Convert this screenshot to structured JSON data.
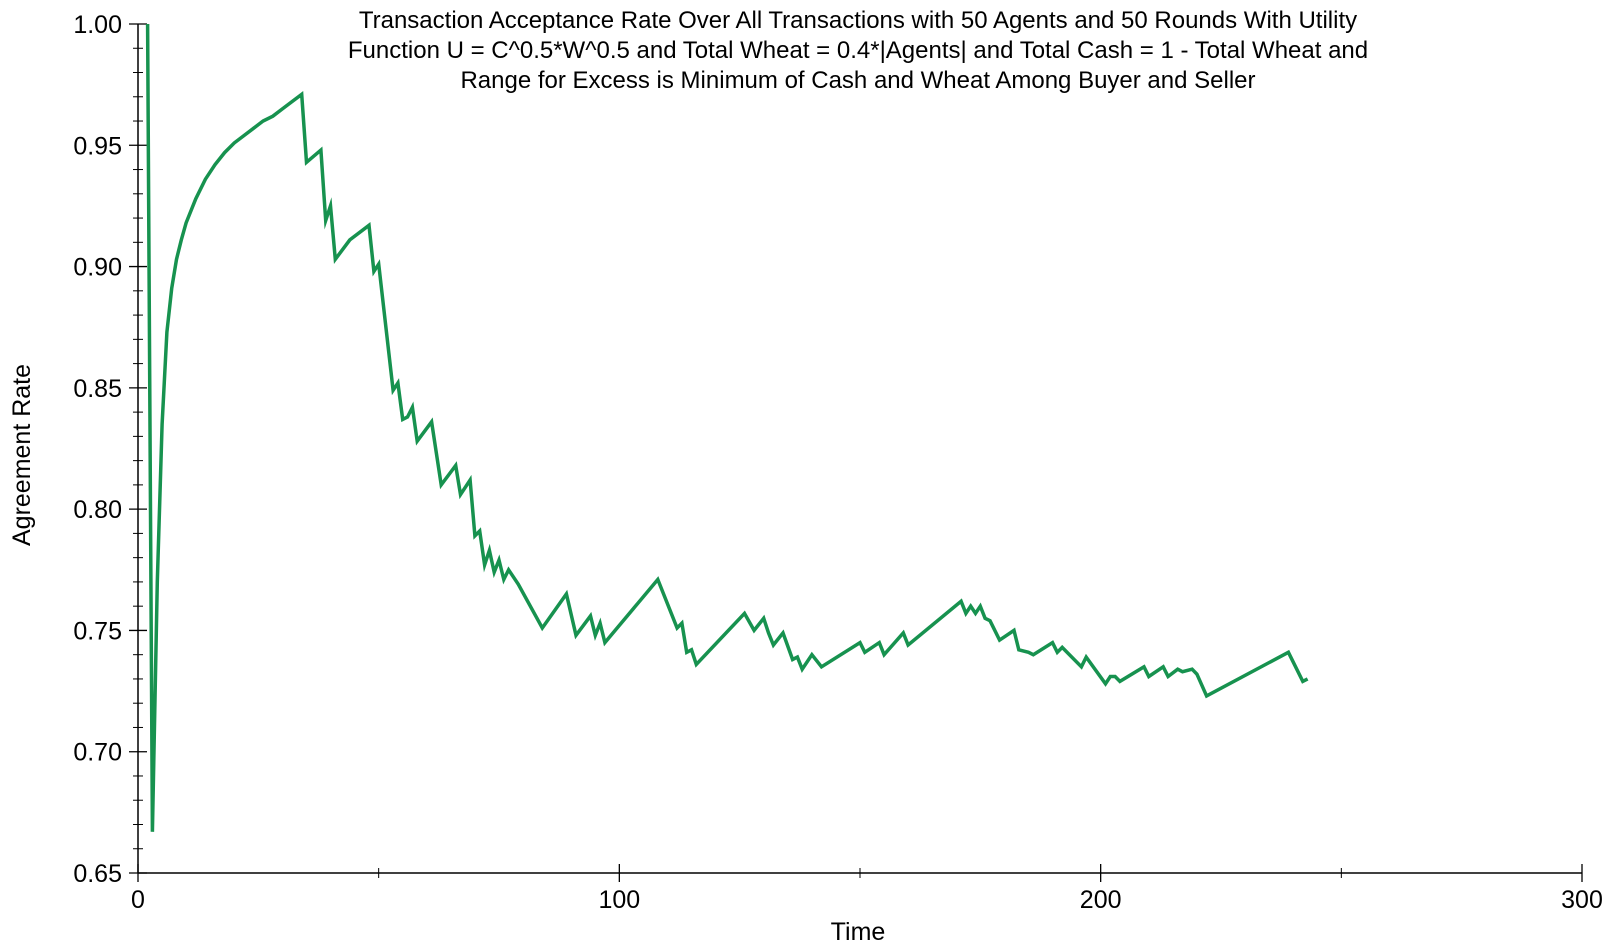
{
  "chart_data": {
    "type": "line",
    "title_lines": [
      "Transaction Acceptance Rate Over All Transactions with 50 Agents and 50 Rounds With Utility",
      "Function U = C^0.5*W^0.5 and Total Wheat = 0.4*|Agents| and Total Cash = 1 - Total Wheat and",
      "Range for Excess is Minimum of Cash and Wheat Among Buyer and Seller"
    ],
    "xlabel": "Time",
    "ylabel": "Agreement Rate",
    "xlim": [
      0,
      300
    ],
    "ylim": [
      0.65,
      1.0
    ],
    "x_ticks": [
      0,
      100,
      200,
      300
    ],
    "x_tick_labels": [
      "0",
      "100",
      "200",
      "300"
    ],
    "x_minor_ticks": [
      50,
      150,
      250
    ],
    "y_ticks": [
      0.65,
      0.7,
      0.75,
      0.8,
      0.85,
      0.9,
      0.95,
      1.0
    ],
    "y_tick_labels": [
      "0.65",
      "0.70",
      "0.75",
      "0.80",
      "0.85",
      "0.90",
      "0.95",
      "1.00"
    ],
    "y_minor_step": 0.01,
    "grid": false,
    "legend": "none",
    "series": [
      {
        "color": "#17924f",
        "x": [
          2,
          3,
          4,
          5,
          6,
          7,
          8,
          9,
          10,
          12,
          14,
          16,
          18,
          20,
          22,
          24,
          26,
          28,
          30,
          32,
          34,
          35,
          38,
          39,
          40,
          41,
          44,
          48,
          49,
          50,
          53,
          54,
          55,
          56,
          57,
          58,
          61,
          62,
          63,
          66,
          67,
          69,
          70,
          71,
          72,
          73,
          74,
          75,
          76,
          77,
          79,
          84,
          89,
          91,
          94,
          95,
          96,
          97,
          108,
          112,
          113,
          114,
          115,
          116,
          126,
          128,
          130,
          131,
          132,
          134,
          136,
          137,
          138,
          140,
          142,
          150,
          151,
          154,
          155,
          159,
          160,
          171,
          172,
          173,
          174,
          175,
          176,
          177,
          179,
          182,
          183,
          185,
          186,
          190,
          191,
          192,
          196,
          197,
          201,
          202,
          203,
          204,
          209,
          210,
          213,
          214,
          216,
          217,
          219,
          220,
          222,
          239,
          242,
          243
        ],
        "y": [
          1.0,
          0.667,
          0.77,
          0.835,
          0.873,
          0.891,
          0.903,
          0.911,
          0.918,
          0.928,
          0.936,
          0.942,
          0.947,
          0.951,
          0.954,
          0.957,
          0.96,
          0.962,
          0.965,
          0.968,
          0.971,
          0.943,
          0.948,
          0.919,
          0.925,
          0.903,
          0.911,
          0.917,
          0.898,
          0.901,
          0.849,
          0.852,
          0.837,
          0.838,
          0.842,
          0.828,
          0.836,
          0.823,
          0.81,
          0.818,
          0.806,
          0.812,
          0.789,
          0.791,
          0.777,
          0.783,
          0.774,
          0.779,
          0.771,
          0.775,
          0.769,
          0.751,
          0.765,
          0.748,
          0.756,
          0.748,
          0.753,
          0.745,
          0.771,
          0.751,
          0.753,
          0.741,
          0.742,
          0.736,
          0.757,
          0.75,
          0.755,
          0.749,
          0.744,
          0.749,
          0.738,
          0.739,
          0.734,
          0.74,
          0.735,
          0.745,
          0.741,
          0.745,
          0.74,
          0.749,
          0.744,
          0.762,
          0.757,
          0.76,
          0.757,
          0.76,
          0.755,
          0.754,
          0.746,
          0.75,
          0.742,
          0.741,
          0.74,
          0.745,
          0.741,
          0.743,
          0.735,
          0.739,
          0.728,
          0.731,
          0.731,
          0.729,
          0.735,
          0.731,
          0.735,
          0.731,
          0.734,
          0.733,
          0.734,
          0.732,
          0.723,
          0.741,
          0.729,
          0.73
        ]
      }
    ]
  }
}
